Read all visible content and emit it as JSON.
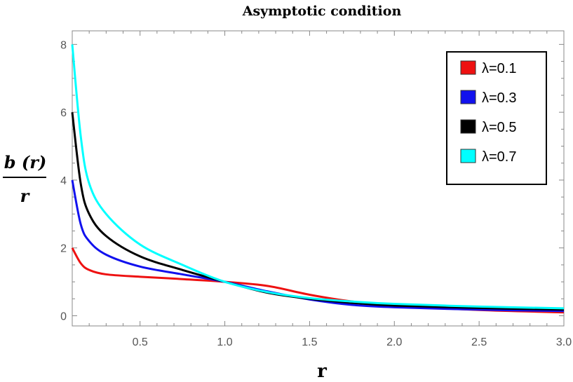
{
  "chart_data": {
    "type": "line",
    "title": "Asymptotic condition",
    "xlabel": "r",
    "ylabel_numerator": "b (r)",
    "ylabel_denominator": "r",
    "xlim": [
      0.1,
      3.0
    ],
    "ylim": [
      -0.3,
      8.4
    ],
    "xticks": [
      0.5,
      1.0,
      1.5,
      2.0,
      2.5,
      3.0
    ],
    "xtick_labels": [
      "0.5",
      "1.0",
      "1.5",
      "2.0",
      "2.5",
      "3.0"
    ],
    "yticks": [
      0,
      2,
      4,
      6,
      8
    ],
    "ytick_labels": [
      "0",
      "2",
      "4",
      "6",
      "8"
    ],
    "legend_position": "top-right",
    "series": [
      {
        "name": "λ=0.1",
        "color": "#ee1111",
        "x": [
          0.1,
          0.15,
          0.2,
          0.3,
          0.5,
          0.75,
          1.0,
          1.25,
          1.5,
          1.75,
          2.0,
          2.5,
          3.0
        ],
        "y": [
          2.0,
          1.55,
          1.35,
          1.22,
          1.15,
          1.08,
          1.0,
          0.88,
          0.62,
          0.42,
          0.3,
          0.17,
          0.1
        ]
      },
      {
        "name": "λ=0.3",
        "color": "#1111ee",
        "x": [
          0.1,
          0.15,
          0.2,
          0.3,
          0.5,
          0.75,
          1.0,
          1.25,
          1.5,
          1.75,
          2.0,
          2.5,
          3.0
        ],
        "y": [
          4.0,
          2.7,
          2.2,
          1.8,
          1.45,
          1.22,
          1.0,
          0.72,
          0.48,
          0.32,
          0.25,
          0.18,
          0.14
        ]
      },
      {
        "name": "λ=0.5",
        "color": "#000000",
        "x": [
          0.1,
          0.15,
          0.2,
          0.3,
          0.5,
          0.75,
          1.0,
          1.25,
          1.5,
          1.75,
          2.0,
          2.5,
          3.0
        ],
        "y": [
          6.0,
          3.9,
          3.0,
          2.35,
          1.75,
          1.35,
          1.0,
          0.68,
          0.5,
          0.38,
          0.3,
          0.23,
          0.18
        ]
      },
      {
        "name": "λ=0.7",
        "color": "#00ffff",
        "x": [
          0.1,
          0.15,
          0.2,
          0.3,
          0.5,
          0.75,
          1.0,
          1.25,
          1.5,
          1.75,
          2.0,
          2.5,
          3.0
        ],
        "y": [
          8.0,
          5.3,
          3.9,
          3.0,
          2.1,
          1.5,
          1.0,
          0.7,
          0.52,
          0.42,
          0.35,
          0.27,
          0.22
        ]
      }
    ]
  }
}
